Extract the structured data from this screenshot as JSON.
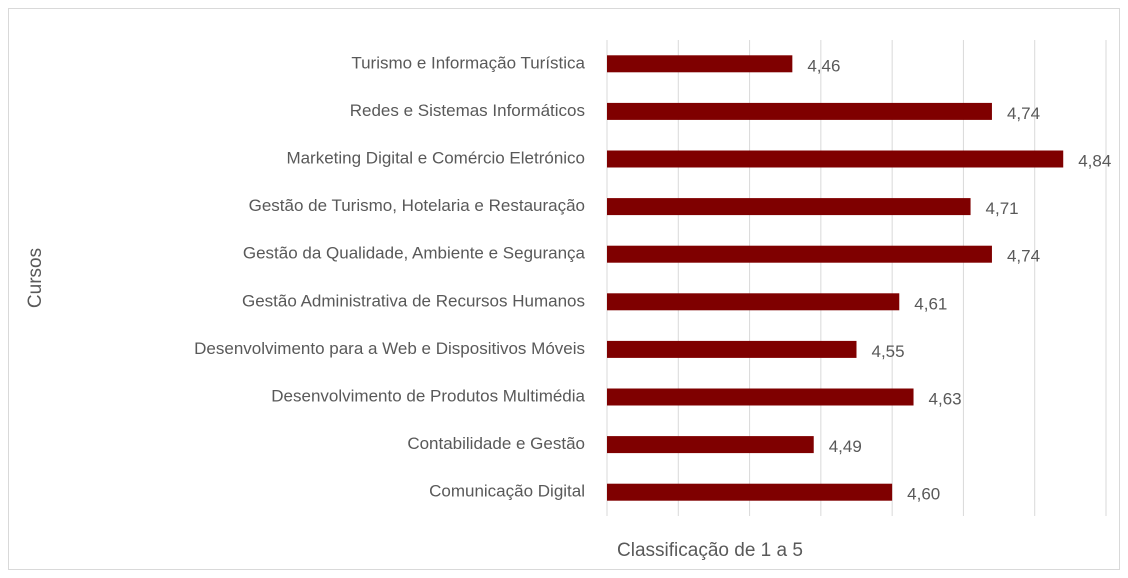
{
  "chart_data": {
    "type": "bar",
    "orientation": "horizontal",
    "x_label": "Classificação de 1 a 5",
    "y_label": "Cursos",
    "categories": [
      "Turismo e Informação Turística",
      "Redes e Sistemas Informáticos",
      "Marketing Digital e Comércio Eletrónico",
      "Gestão de Turismo, Hotelaria e Restauração",
      "Gestão da Qualidade, Ambiente e Segurança",
      "Gestão Administrativa de Recursos Humanos",
      "Desenvolvimento para a Web e Dispositivos Móveis",
      "Desenvolvimento de Produtos Multimédia",
      "Contabilidade e Gestão",
      "Comunicação Digital"
    ],
    "values": [
      4.46,
      4.74,
      4.84,
      4.71,
      4.74,
      4.61,
      4.55,
      4.63,
      4.49,
      4.6
    ],
    "value_labels": [
      "4,46",
      "4,74",
      "4,84",
      "4,71",
      "4,74",
      "4,61",
      "4,55",
      "4,63",
      "4,49",
      "4,60"
    ],
    "color": "#7f0000",
    "xlim": [
      4.2,
      4.9
    ],
    "xticks": [
      4.2,
      4.3,
      4.4,
      4.5,
      4.6,
      4.7,
      4.8,
      4.9
    ],
    "grid": true
  }
}
